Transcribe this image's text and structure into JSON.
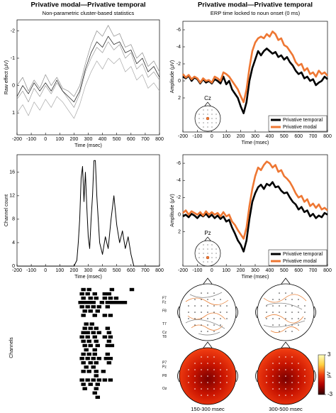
{
  "chart_data": [
    {
      "type": "line",
      "title": "Privative modal—Privative temporal",
      "subtitle": "Non-parametric cluster-based statistics",
      "ylabel": "Raw effect (μV)",
      "xlabel": "Time (msec)",
      "x": [
        -200,
        -160,
        -120,
        -80,
        -40,
        0,
        40,
        80,
        120,
        160,
        200,
        240,
        280,
        320,
        360,
        400,
        440,
        480,
        520,
        560,
        600,
        640,
        680,
        720,
        760,
        800
      ],
      "series": [
        {
          "color": "#9a9a9a",
          "values": [
            0.5,
            0.2,
            0.6,
            0.1,
            0.4,
            0.0,
            0.3,
            -0.1,
            0.2,
            0.5,
            0.8,
            0.3,
            -0.5,
            -1.0,
            -1.4,
            -1.2,
            -1.6,
            -1.3,
            -1.5,
            -1.0,
            -1.2,
            -0.6,
            -0.8,
            -0.3,
            -0.5,
            -0.2
          ]
        },
        {
          "color": "#8a8a8a",
          "values": [
            0.0,
            -0.3,
            0.2,
            -0.2,
            0.1,
            -0.4,
            0.0,
            -0.3,
            0.1,
            0.2,
            0.4,
            0.0,
            -0.8,
            -1.5,
            -2.0,
            -1.8,
            -2.2,
            -1.8,
            -1.9,
            -1.4,
            -1.5,
            -1.0,
            -1.2,
            -0.7,
            -0.9,
            -0.5
          ]
        },
        {
          "color": "#a8a8a8",
          "values": [
            1.0,
            0.7,
            1.1,
            0.6,
            0.9,
            0.5,
            0.8,
            0.4,
            0.6,
            0.9,
            1.2,
            0.7,
            0.0,
            -0.5,
            -0.9,
            -0.6,
            -1.0,
            -0.8,
            -1.0,
            -0.5,
            -0.7,
            -0.2,
            -0.4,
            0.1,
            -0.1,
            0.2
          ]
        },
        {
          "color": "#111111",
          "values": [
            0.4,
            0.0,
            0.3,
            -0.1,
            0.2,
            -0.1,
            0.2,
            -0.2,
            0.2,
            0.4,
            0.6,
            0.2,
            -0.6,
            -1.2,
            -1.6,
            -1.4,
            -1.8,
            -1.5,
            -1.6,
            -1.2,
            -1.3,
            -0.8,
            -1.0,
            -0.5,
            -0.7,
            -0.3
          ]
        }
      ],
      "xlim": [
        -200,
        800
      ],
      "xticks": [
        -200,
        -100,
        0,
        100,
        200,
        300,
        400,
        500,
        600,
        700,
        800
      ],
      "ylim": [
        -2.4,
        1.8
      ],
      "yticks": [
        -2,
        -1,
        0,
        1
      ],
      "y_inverted": true
    },
    {
      "type": "line",
      "ylabel": "Channel count",
      "xlabel": "Time (msec)",
      "x": [
        -200,
        200,
        220,
        230,
        240,
        250,
        260,
        270,
        280,
        290,
        300,
        310,
        320,
        330,
        340,
        350,
        360,
        370,
        380,
        400,
        420,
        440,
        460,
        480,
        500,
        520,
        540,
        560,
        580,
        600,
        620,
        800
      ],
      "series": [
        {
          "color": "#000000",
          "values": [
            0,
            0,
            1,
            4,
            8,
            15,
            17,
            11,
            16,
            10,
            5,
            3,
            8,
            12,
            18,
            18,
            12,
            8,
            4,
            2,
            5,
            3,
            8,
            12,
            7,
            4,
            6,
            3,
            5,
            2,
            0,
            0
          ]
        }
      ],
      "xlim": [
        -200,
        800
      ],
      "xticks": [
        -200,
        -100,
        0,
        100,
        200,
        300,
        400,
        500,
        600,
        700,
        800
      ],
      "ylim": [
        0,
        19
      ],
      "yticks": [
        0,
        4,
        8,
        12,
        16
      ]
    },
    {
      "type": "raster",
      "ylabel": "Channels",
      "xlim": [
        -200,
        800
      ],
      "color": "#000000",
      "categories": [
        null,
        null,
        "F7",
        "Fz",
        null,
        "F8",
        null,
        null,
        "T7",
        null,
        "Cz",
        "T8",
        null,
        null,
        null,
        null,
        null,
        "P7",
        "Pz",
        null,
        "P8",
        null,
        null,
        "Oz",
        null,
        null,
        null,
        null
      ],
      "times": [
        [
          250,
          290,
          450,
          590
        ],
        [
          240,
          280,
          330,
          400,
          430
        ],
        [
          250,
          300,
          340,
          400,
          440,
          480
        ],
        [
          230,
          260,
          290,
          320,
          380,
          420,
          450,
          480,
          510,
          540
        ],
        [
          240,
          280,
          320,
          360,
          420
        ],
        [
          260,
          300,
          350
        ],
        [
          250,
          330,
          400,
          440
        ],
        [],
        [
          270,
          310
        ],
        [
          260,
          300,
          340,
          420
        ],
        [
          250,
          280,
          320,
          360,
          430
        ],
        [
          240,
          280,
          330,
          400,
          440
        ],
        [
          250,
          290,
          340,
          430
        ],
        [
          260,
          300,
          350,
          420,
          450
        ],
        [
          270,
          330
        ],
        [
          250,
          290,
          330,
          420
        ],
        [
          240,
          280,
          320,
          360,
          410,
          440
        ],
        [
          250,
          300,
          340,
          430
        ],
        [
          270,
          320
        ],
        [
          250,
          290,
          340,
          390
        ],
        [
          340
        ],
        [
          240,
          280,
          320,
          360,
          400,
          440
        ],
        [
          250,
          300,
          350
        ],
        [
          260,
          340
        ],
        [
          330
        ],
        [
          350
        ],
        [],
        []
      ]
    },
    {
      "type": "line",
      "title": "Privative modal—Privative temporal",
      "subtitle": "ERP time locked to noun onset (0 ms)",
      "ylabel": "Amplitude (μV)",
      "xlabel": "Time (msec)",
      "inset_label": "Cz",
      "legend": "lower right",
      "x": [
        -200,
        -180,
        -160,
        -140,
        -120,
        -100,
        -80,
        -60,
        -40,
        -20,
        0,
        20,
        40,
        60,
        80,
        100,
        120,
        140,
        160,
        180,
        200,
        220,
        240,
        260,
        280,
        300,
        320,
        340,
        360,
        380,
        400,
        420,
        440,
        460,
        480,
        500,
        520,
        540,
        560,
        580,
        600,
        620,
        640,
        660,
        680,
        700,
        720,
        740,
        760,
        780,
        800
      ],
      "series": [
        {
          "name": "Privative temporal",
          "color": "#000000",
          "values": [
            -0.5,
            -0.3,
            -0.6,
            0,
            -0.4,
            -0.2,
            0.3,
            -0.2,
            0.2,
            0,
            0.3,
            -0.2,
            0,
            0.3,
            -0.5,
            0.4,
            0,
            1,
            1.5,
            2,
            3,
            3.8,
            2.5,
            0,
            -1.5,
            -2.5,
            -3.5,
            -3,
            -3.5,
            -3.8,
            -3.5,
            -3.2,
            -3.4,
            -2.8,
            -3,
            -2.5,
            -2.8,
            -2.2,
            -1.8,
            -1.2,
            -0.8,
            -1,
            -0.3,
            -0.5,
            0,
            -0.2,
            0.5,
            0.2,
            0,
            -0.5,
            -0.2
          ]
        },
        {
          "name": "Privative modal",
          "color": "#ee7733",
          "values": [
            -0.8,
            -0.4,
            -0.7,
            -0.2,
            -0.5,
            -0.3,
            0.2,
            -0.3,
            0,
            -0.1,
            0.2,
            -0.5,
            -0.3,
            0,
            -1,
            -0.8,
            -0.5,
            0,
            0.5,
            1,
            1.8,
            2.5,
            1,
            -1.5,
            -3.5,
            -4.5,
            -5,
            -5.2,
            -5,
            -5.5,
            -5.2,
            -5.8,
            -5.5,
            -4.8,
            -5,
            -4.2,
            -4,
            -3.5,
            -3,
            -2.2,
            -1.8,
            -2,
            -1.2,
            -1.5,
            -0.8,
            -1,
            -0.5,
            -1.2,
            -0.8,
            -1,
            -0.6
          ]
        }
      ],
      "xlim": [
        -200,
        800
      ],
      "xticks": [
        -200,
        -100,
        0,
        100,
        200,
        300,
        400,
        500,
        600,
        700,
        800
      ],
      "ylim": [
        -7,
        6
      ],
      "yticks": [
        -6,
        -4,
        -2,
        0,
        2
      ],
      "y_inverted": true
    },
    {
      "type": "line",
      "ylabel": "Amplitude (μV)",
      "xlabel": "Time (msec)",
      "inset_label": "Pz",
      "legend": "lower right",
      "x": [
        -200,
        -180,
        -160,
        -140,
        -120,
        -100,
        -80,
        -60,
        -40,
        -20,
        0,
        20,
        40,
        60,
        80,
        100,
        120,
        140,
        160,
        180,
        200,
        220,
        240,
        260,
        280,
        300,
        320,
        340,
        360,
        380,
        400,
        420,
        440,
        460,
        480,
        500,
        520,
        540,
        560,
        580,
        600,
        620,
        640,
        660,
        680,
        700,
        720,
        740,
        760,
        780,
        800
      ],
      "series": [
        {
          "name": "Privative temporal",
          "color": "#000000",
          "values": [
            0.2,
            0,
            0.3,
            -0.1,
            0.1,
            0.4,
            0,
            0.2,
            -0.1,
            0.3,
            0,
            0.4,
            0.1,
            0.5,
            0.2,
            0.8,
            0.6,
            1.5,
            2.2,
            3,
            3.5,
            4.3,
            3,
            0.5,
            -1.5,
            -2.5,
            -3.2,
            -3.5,
            -3,
            -3.6,
            -3.4,
            -3.8,
            -3.2,
            -3.3,
            -2.8,
            -2.5,
            -2.6,
            -2,
            -1.5,
            -1.2,
            -0.6,
            -0.9,
            -0.3,
            -0.5,
            0.2,
            -0.1,
            0.4,
            0.1,
            0.3,
            -0.2,
            0
          ]
        },
        {
          "name": "Privative modal",
          "color": "#ee7733",
          "values": [
            -0.2,
            -0.5,
            0,
            -0.4,
            -0.2,
            0,
            -0.3,
            0.1,
            -0.4,
            0,
            -0.3,
            0,
            -0.2,
            0.2,
            -0.3,
            0.2,
            0,
            0.8,
            1.2,
            1.8,
            2.3,
            2.8,
            1.5,
            -1,
            -3,
            -4.5,
            -5.5,
            -5.2,
            -5.8,
            -6.2,
            -6,
            -5.5,
            -5.8,
            -5,
            -5.2,
            -4.5,
            -4.2,
            -3.8,
            -3.2,
            -2.5,
            -2,
            -2.2,
            -1.5,
            -1.8,
            -1,
            -1.3,
            -0.8,
            -1.2,
            -0.6,
            -0.8,
            -0.5
          ]
        }
      ],
      "xlim": [
        -200,
        800
      ],
      "xticks": [
        -200,
        -100,
        0,
        100,
        200,
        300,
        400,
        500,
        600,
        700,
        800
      ],
      "ylim": [
        -7,
        6
      ],
      "yticks": [
        -6,
        -4,
        -2,
        0,
        2
      ],
      "y_inverted": true
    },
    {
      "type": "topomap",
      "clim": [
        -3,
        3
      ],
      "cticks": [
        3,
        -3
      ],
      "clabel": "μV",
      "captions": [
        "150-300 msec",
        "300-500 msec"
      ]
    }
  ]
}
